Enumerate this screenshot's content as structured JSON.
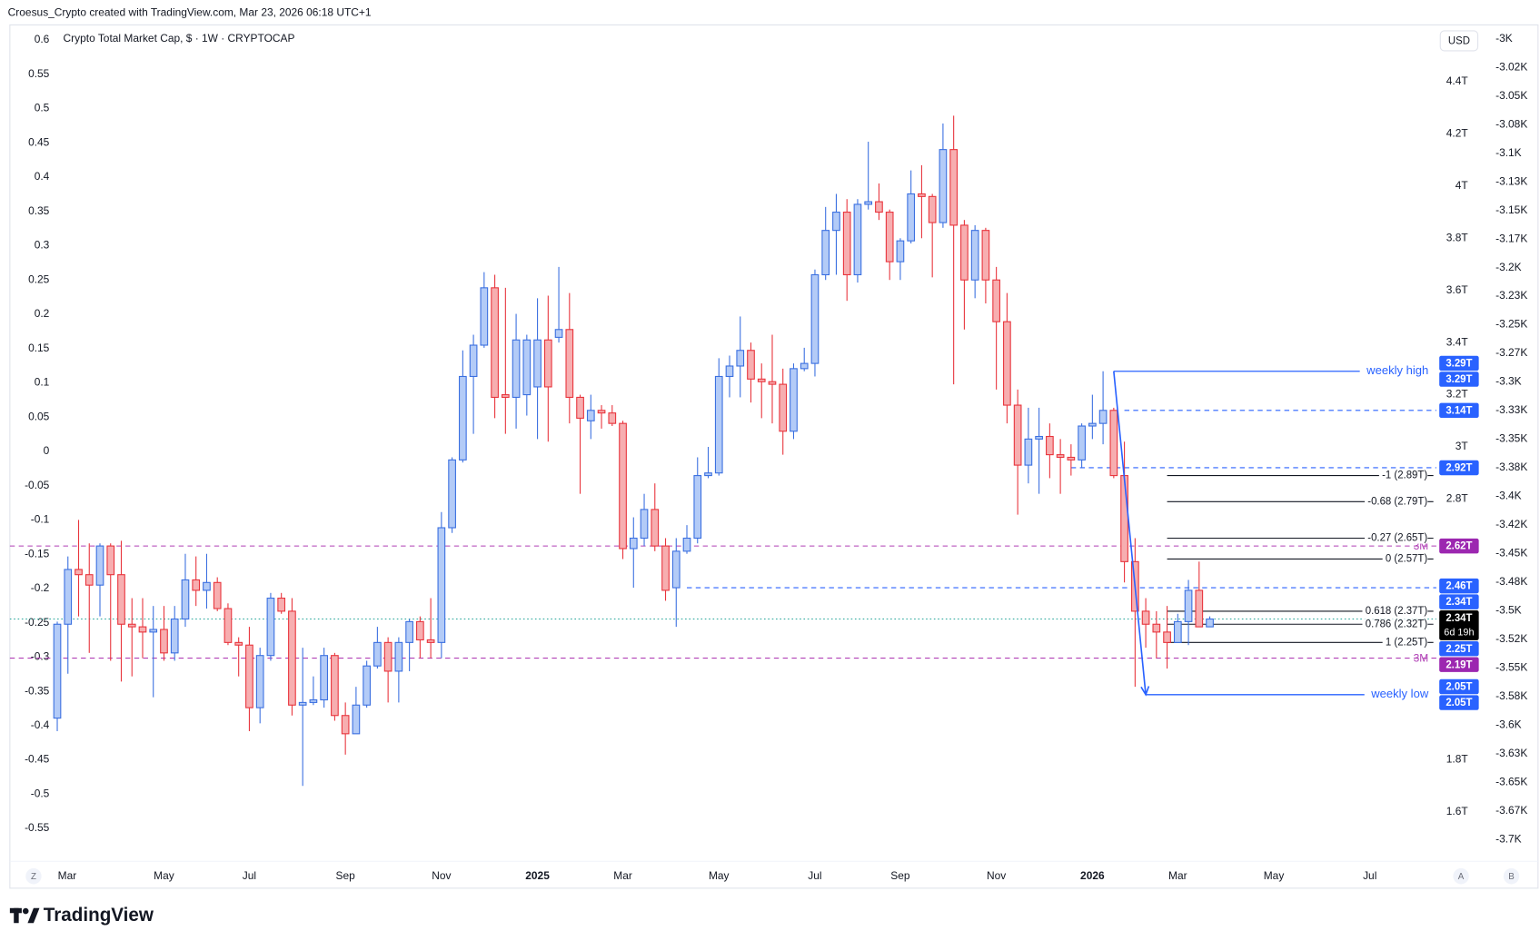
{
  "header": {
    "attribution": "Croesus_Crypto created with TradingView.com, Mar 23, 2026 06:18 UTC+1",
    "logo": "TradingView"
  },
  "chart_data": {
    "type": "candlestick",
    "title": "Crypto Total Market Cap, $ · 1W · CRYPTOCAP",
    "currency": "USD",
    "zoom_button": "Z",
    "scale_buttons": [
      "A",
      "B"
    ],
    "up_color": "#3a6fe0",
    "up_fill": "#b3cbf7",
    "down_color": "#e8343c",
    "down_fill": "#f7aeb0",
    "ohlc": [
      [
        1.96,
        2.33,
        1.91,
        2.32
      ],
      [
        2.32,
        2.58,
        2.13,
        2.53
      ],
      [
        2.53,
        2.72,
        2.35,
        2.51
      ],
      [
        2.51,
        2.63,
        2.21,
        2.47
      ],
      [
        2.47,
        2.63,
        2.35,
        2.62
      ],
      [
        2.62,
        2.63,
        2.18,
        2.51
      ],
      [
        2.51,
        2.64,
        2.1,
        2.32
      ],
      [
        2.32,
        2.42,
        2.12,
        2.31
      ],
      [
        2.31,
        2.42,
        2.19,
        2.29
      ],
      [
        2.29,
        2.39,
        2.04,
        2.3
      ],
      [
        2.3,
        2.39,
        2.18,
        2.21
      ],
      [
        2.21,
        2.39,
        2.18,
        2.34
      ],
      [
        2.34,
        2.59,
        2.31,
        2.49
      ],
      [
        2.49,
        2.58,
        2.39,
        2.45
      ],
      [
        2.45,
        2.59,
        2.38,
        2.48
      ],
      [
        2.48,
        2.5,
        2.37,
        2.38
      ],
      [
        2.38,
        2.4,
        2.24,
        2.25
      ],
      [
        2.25,
        2.27,
        2.12,
        2.24
      ],
      [
        2.24,
        2.31,
        1.91,
        2.0
      ],
      [
        2.0,
        2.23,
        1.94,
        2.2
      ],
      [
        2.2,
        2.44,
        2.18,
        2.42
      ],
      [
        2.42,
        2.44,
        2.36,
        2.37
      ],
      [
        2.37,
        2.42,
        1.97,
        2.01
      ],
      [
        2.01,
        2.23,
        1.7,
        2.02
      ],
      [
        2.02,
        2.12,
        2.01,
        2.03
      ],
      [
        2.03,
        2.23,
        2.0,
        2.2
      ],
      [
        2.2,
        2.21,
        1.95,
        1.97
      ],
      [
        1.97,
        2.02,
        1.82,
        1.9
      ],
      [
        1.9,
        2.08,
        1.9,
        2.01
      ],
      [
        2.01,
        2.18,
        2.0,
        2.16
      ],
      [
        2.16,
        2.31,
        2.15,
        2.25
      ],
      [
        2.25,
        2.27,
        2.02,
        2.14
      ],
      [
        2.14,
        2.27,
        2.02,
        2.25
      ],
      [
        2.25,
        2.34,
        2.14,
        2.33
      ],
      [
        2.33,
        2.35,
        2.19,
        2.26
      ],
      [
        2.26,
        2.42,
        2.19,
        2.25
      ],
      [
        2.25,
        2.75,
        2.19,
        2.69
      ],
      [
        2.69,
        2.96,
        2.67,
        2.95
      ],
      [
        2.95,
        3.37,
        2.94,
        3.27
      ],
      [
        3.27,
        3.43,
        3.05,
        3.39
      ],
      [
        3.39,
        3.67,
        3.38,
        3.61
      ],
      [
        3.61,
        3.66,
        3.11,
        3.19
      ],
      [
        3.2,
        3.61,
        3.05,
        3.19
      ],
      [
        3.19,
        3.51,
        3.07,
        3.41
      ],
      [
        3.2,
        3.43,
        3.12,
        3.41
      ],
      [
        3.23,
        3.57,
        3.03,
        3.41
      ],
      [
        3.41,
        3.58,
        3.02,
        3.23
      ],
      [
        3.42,
        3.69,
        3.4,
        3.45
      ],
      [
        3.45,
        3.59,
        3.09,
        3.19
      ],
      [
        3.19,
        3.2,
        2.82,
        3.11
      ],
      [
        3.1,
        3.2,
        3.03,
        3.14
      ],
      [
        3.14,
        3.16,
        3.07,
        3.13
      ],
      [
        3.13,
        3.16,
        3.08,
        3.09
      ],
      [
        3.09,
        3.1,
        2.57,
        2.61
      ],
      [
        2.61,
        2.73,
        2.46,
        2.65
      ],
      [
        2.65,
        2.82,
        2.62,
        2.76
      ],
      [
        2.76,
        2.86,
        2.6,
        2.62
      ],
      [
        2.62,
        2.65,
        2.41,
        2.45
      ],
      [
        2.46,
        2.65,
        2.31,
        2.6
      ],
      [
        2.6,
        2.7,
        2.59,
        2.65
      ],
      [
        2.65,
        2.96,
        2.63,
        2.89
      ],
      [
        2.89,
        3.0,
        2.88,
        2.9
      ],
      [
        2.9,
        3.34,
        2.89,
        3.27
      ],
      [
        3.27,
        3.35,
        3.19,
        3.31
      ],
      [
        3.31,
        3.5,
        3.19,
        3.37
      ],
      [
        3.37,
        3.4,
        3.17,
        3.26
      ],
      [
        3.26,
        3.32,
        3.11,
        3.25
      ],
      [
        3.25,
        3.43,
        3.09,
        3.24
      ],
      [
        3.24,
        3.3,
        2.97,
        3.06
      ],
      [
        3.06,
        3.32,
        3.03,
        3.3
      ],
      [
        3.3,
        3.38,
        3.29,
        3.32
      ],
      [
        3.32,
        3.68,
        3.27,
        3.66
      ],
      [
        3.66,
        3.92,
        3.64,
        3.83
      ],
      [
        3.83,
        3.97,
        3.66,
        3.9
      ],
      [
        3.9,
        3.95,
        3.56,
        3.66
      ],
      [
        3.66,
        3.95,
        3.63,
        3.93
      ],
      [
        3.93,
        4.17,
        3.91,
        3.94
      ],
      [
        3.94,
        4.01,
        3.87,
        3.9
      ],
      [
        3.9,
        3.91,
        3.64,
        3.71
      ],
      [
        3.71,
        3.8,
        3.64,
        3.79
      ],
      [
        3.79,
        4.06,
        3.78,
        3.97
      ],
      [
        3.97,
        4.08,
        3.8,
        3.96
      ],
      [
        3.96,
        3.97,
        3.65,
        3.86
      ],
      [
        3.86,
        4.24,
        3.84,
        4.14
      ],
      [
        4.14,
        4.27,
        3.24,
        3.85
      ],
      [
        3.85,
        3.87,
        3.45,
        3.64
      ],
      [
        3.64,
        3.85,
        3.57,
        3.83
      ],
      [
        3.83,
        3.84,
        3.55,
        3.64
      ],
      [
        3.64,
        3.69,
        3.22,
        3.48
      ],
      [
        3.48,
        3.59,
        3.09,
        3.16
      ],
      [
        3.16,
        3.22,
        2.74,
        2.93
      ],
      [
        2.93,
        3.15,
        2.86,
        3.03
      ],
      [
        3.03,
        3.15,
        2.82,
        3.04
      ],
      [
        3.04,
        3.09,
        2.88,
        2.97
      ],
      [
        2.97,
        3.03,
        2.82,
        2.96
      ],
      [
        2.96,
        3.01,
        2.89,
        2.95
      ],
      [
        2.95,
        3.09,
        2.92,
        3.08
      ],
      [
        3.08,
        3.2,
        3.03,
        3.09
      ],
      [
        3.09,
        3.29,
        3.01,
        3.14
      ],
      [
        3.14,
        3.15,
        2.88,
        2.89
      ],
      [
        2.89,
        3.02,
        2.48,
        2.56
      ],
      [
        2.56,
        2.65,
        2.08,
        2.37
      ],
      [
        2.37,
        2.42,
        2.23,
        2.32
      ],
      [
        2.32,
        2.37,
        2.19,
        2.29
      ],
      [
        2.29,
        2.39,
        2.15,
        2.25
      ],
      [
        2.25,
        2.36,
        2.25,
        2.33
      ],
      [
        2.33,
        2.49,
        2.24,
        2.45
      ],
      [
        2.45,
        2.56,
        2.31,
        2.31
      ],
      [
        2.31,
        2.35,
        2.31,
        2.34
      ]
    ],
    "xlim": [
      -4.44,
      129.23
    ],
    "xticks": [
      {
        "value": 0.93,
        "label": "Mar"
      },
      {
        "value": 10,
        "label": "May"
      },
      {
        "value": 18,
        "label": "Jul"
      },
      {
        "value": 27,
        "label": "Sep"
      },
      {
        "value": 36,
        "label": "Nov"
      },
      {
        "value": 45,
        "label": "2025"
      },
      {
        "value": 53,
        "label": "Mar"
      },
      {
        "value": 62,
        "label": "May"
      },
      {
        "value": 71,
        "label": "Jul"
      },
      {
        "value": 79,
        "label": "Sep"
      },
      {
        "value": 88,
        "label": "Nov"
      },
      {
        "value": 97,
        "label": "2026"
      },
      {
        "value": 105,
        "label": "Mar"
      },
      {
        "value": 114,
        "label": "May"
      },
      {
        "value": 123,
        "label": "Jul"
      }
    ],
    "ylim": [
      1.411,
      4.618
    ],
    "yticks": [
      {
        "value": 4.4,
        "label": "4.4T"
      },
      {
        "value": 4.2,
        "label": "4.2T"
      },
      {
        "value": 4.0,
        "label": "4T"
      },
      {
        "value": 3.8,
        "label": "3.8T"
      },
      {
        "value": 3.6,
        "label": "3.6T"
      },
      {
        "value": 3.4,
        "label": "3.4T"
      },
      {
        "value": 3.2,
        "label": "3.2T"
      },
      {
        "value": 3.0,
        "label": "3T"
      },
      {
        "value": 2.8,
        "label": "2.8T"
      },
      {
        "value": 1.8,
        "label": "1.8T"
      },
      {
        "value": 1.6,
        "label": "1.6T"
      }
    ],
    "y2lim": [
      -0.598,
      0.622
    ],
    "y2ticks": [
      0.6,
      0.55,
      0.5,
      0.45,
      0.4,
      0.35,
      0.3,
      0.25,
      0.2,
      0.15,
      0.1,
      0.05,
      0,
      -0.05,
      -0.1,
      -0.15,
      -0.2,
      -0.25,
      -0.3,
      -0.35,
      -0.4,
      -0.45,
      -0.5,
      -0.55
    ],
    "y3lim": [
      -3719.2,
      -2987.8
    ],
    "y3ticks": [
      {
        "value": -3000,
        "label": "-3K"
      },
      {
        "value": -3025,
        "label": "-3.02K"
      },
      {
        "value": -3050,
        "label": "-3.05K"
      },
      {
        "value": -3075,
        "label": "-3.08K"
      },
      {
        "value": -3100,
        "label": "-3.1K"
      },
      {
        "value": -3125,
        "label": "-3.13K"
      },
      {
        "value": -3150,
        "label": "-3.15K"
      },
      {
        "value": -3175,
        "label": "-3.17K"
      },
      {
        "value": -3200,
        "label": "-3.2K"
      },
      {
        "value": -3225,
        "label": "-3.23K"
      },
      {
        "value": -3250,
        "label": "-3.25K"
      },
      {
        "value": -3275,
        "label": "-3.27K"
      },
      {
        "value": -3300,
        "label": "-3.3K"
      },
      {
        "value": -3325,
        "label": "-3.33K"
      },
      {
        "value": -3350,
        "label": "-3.35K"
      },
      {
        "value": -3375,
        "label": "-3.38K"
      },
      {
        "value": -3400,
        "label": "-3.4K"
      },
      {
        "value": -3425,
        "label": "-3.42K"
      },
      {
        "value": -3450,
        "label": "-3.45K"
      },
      {
        "value": -3475,
        "label": "-3.48K"
      },
      {
        "value": -3500,
        "label": "-3.5K"
      },
      {
        "value": -3525,
        "label": "-3.52K"
      },
      {
        "value": -3550,
        "label": "-3.55K"
      },
      {
        "value": -3575,
        "label": "-3.58K"
      },
      {
        "value": -3600,
        "label": "-3.6K"
      },
      {
        "value": -3625,
        "label": "-3.63K"
      },
      {
        "value": -3650,
        "label": "-3.65K"
      },
      {
        "value": -3675,
        "label": "-3.67K"
      },
      {
        "value": -3700,
        "label": "-3.7K"
      }
    ],
    "levels": [
      {
        "value": 3.14,
        "from": 100,
        "color": "#2962ff",
        "style": "dashed"
      },
      {
        "value": 2.92,
        "from": 95,
        "color": "#2962ff",
        "style": "dashed"
      },
      {
        "value": 2.62,
        "color": "#b03fb5",
        "style": "dashed",
        "label": "3M"
      },
      {
        "value": 2.46,
        "from": 59,
        "color": "#2962ff",
        "style": "dashed"
      },
      {
        "value": 2.34,
        "color": "#26a69a",
        "style": "dotted"
      },
      {
        "value": 2.19,
        "color": "#b03fb5",
        "style": "dashed",
        "label": "3M"
      }
    ],
    "swings": [
      {
        "label": "weekly high",
        "value": 3.29,
        "from": 99,
        "color": "#2962ff"
      },
      {
        "label": "weekly low",
        "value": 2.05,
        "from": 102,
        "color": "#2962ff"
      }
    ],
    "fib_from": 104,
    "fib": [
      {
        "label": "-1 (2.89T)",
        "value": 2.89
      },
      {
        "label": "-0.68 (2.79T)",
        "value": 2.79
      },
      {
        "label": "-0.27 (2.65T)",
        "value": 2.65
      },
      {
        "label": "0 (2.57T)",
        "value": 2.57
      },
      {
        "label": "0.618 (2.37T)",
        "value": 2.37
      },
      {
        "label": "0.786 (2.32T)",
        "value": 2.32
      },
      {
        "label": "1 (2.25T)",
        "value": 2.25
      }
    ],
    "badges": [
      {
        "label": "3.29T",
        "value": 3.29,
        "color": "#2962ff"
      },
      {
        "label": "3.29T",
        "value": 3.29,
        "color": "#2962ff"
      },
      {
        "label": "3.14T",
        "value": 3.14,
        "color": "#2962ff"
      },
      {
        "label": "2.92T",
        "value": 2.92,
        "color": "#2962ff"
      },
      {
        "label": "2.62T",
        "value": 2.62,
        "color": "#9c27b0"
      },
      {
        "label": "2.46T",
        "value": 2.46,
        "color": "#2962ff"
      },
      {
        "label": "2.34T",
        "value": 2.34,
        "color": "#2962ff"
      },
      {
        "label": "2.34T",
        "value": 2.34,
        "color": "#000000",
        "countdown": "6d 19h"
      },
      {
        "label": "2.25T",
        "value": 2.25,
        "color": "#2962ff"
      },
      {
        "label": "2.19T",
        "value": 2.19,
        "color": "#9c27b0"
      },
      {
        "label": "2.05T",
        "value": 2.05,
        "color": "#2962ff"
      },
      {
        "label": "2.05T",
        "value": 2.05,
        "color": "#2962ff"
      }
    ]
  }
}
